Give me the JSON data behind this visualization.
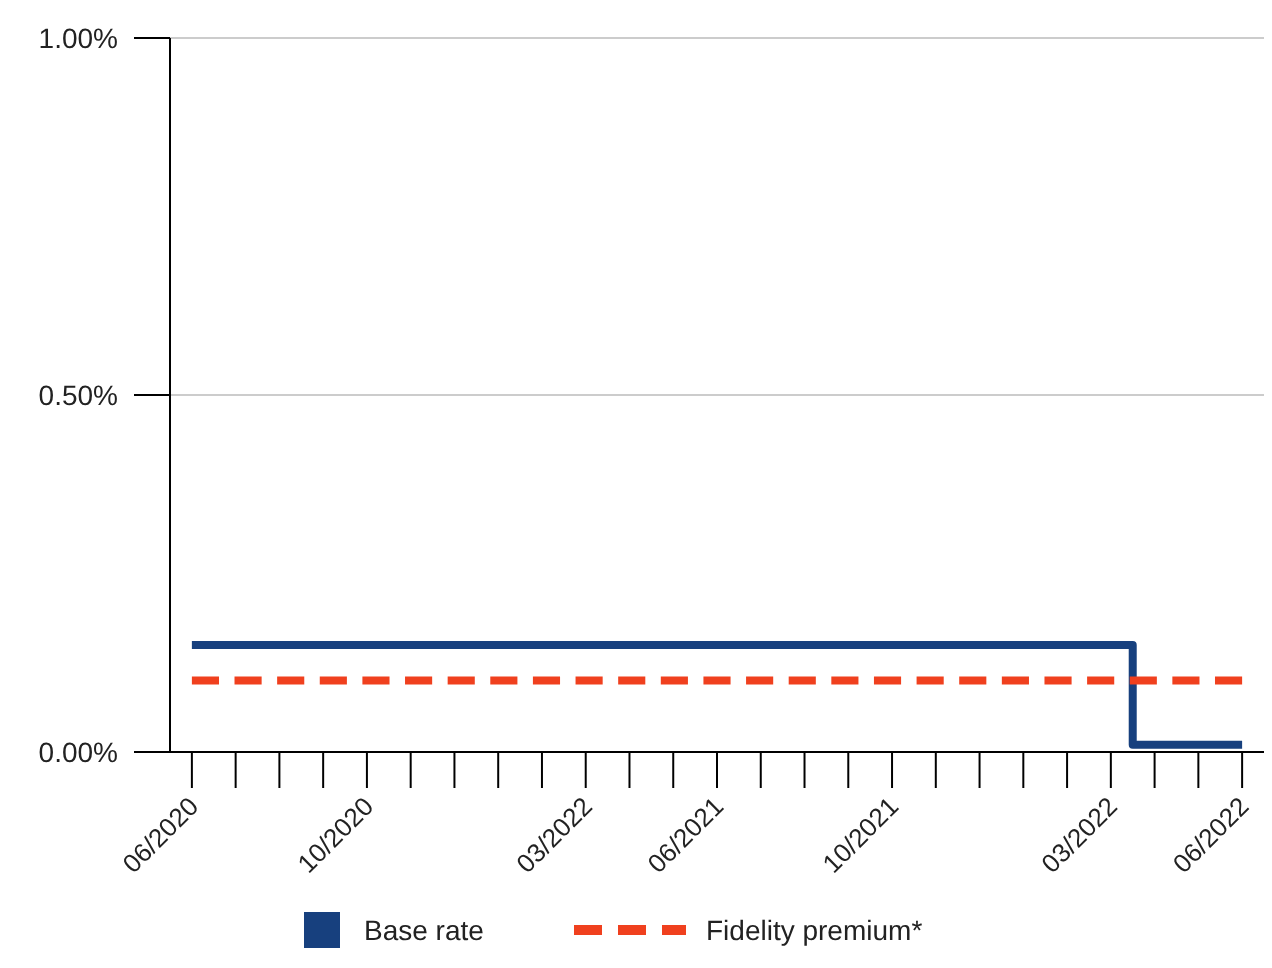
{
  "chart_data": {
    "type": "step",
    "categories": [
      "06/2020",
      null,
      null,
      null,
      "10/2020",
      null,
      null,
      null,
      null,
      "03/2022",
      null,
      null,
      "06/2021",
      null,
      null,
      null,
      "10/2021",
      null,
      null,
      null,
      null,
      "03/2022",
      null,
      null,
      "06/2022"
    ],
    "series": [
      {
        "name": "Base rate",
        "color": "#17407e",
        "line_style": "solid",
        "values": [
          0.15,
          0.15,
          0.15,
          0.15,
          0.15,
          0.15,
          0.15,
          0.15,
          0.15,
          0.15,
          0.15,
          0.15,
          0.15,
          0.15,
          0.15,
          0.15,
          0.15,
          0.15,
          0.15,
          0.15,
          0.15,
          0.15,
          0.01,
          0.01,
          0.01
        ]
      },
      {
        "name": "Fidelity premium*",
        "color": "#f0401e",
        "line_style": "dashed",
        "values": [
          0.1,
          0.1,
          0.1,
          0.1,
          0.1,
          0.1,
          0.1,
          0.1,
          0.1,
          0.1,
          0.1,
          0.1,
          0.1,
          0.1,
          0.1,
          0.1,
          0.1,
          0.1,
          0.1,
          0.1,
          0.1,
          0.1,
          0.1,
          0.1,
          0.1
        ]
      }
    ],
    "ylim": [
      0,
      1
    ],
    "yticks": [
      {
        "value": 0,
        "label": "0.00%"
      },
      {
        "value": 0.5,
        "label": "0.50%"
      },
      {
        "value": 1,
        "label": "1.00%"
      }
    ],
    "grid": "y",
    "legend": "bottom"
  }
}
